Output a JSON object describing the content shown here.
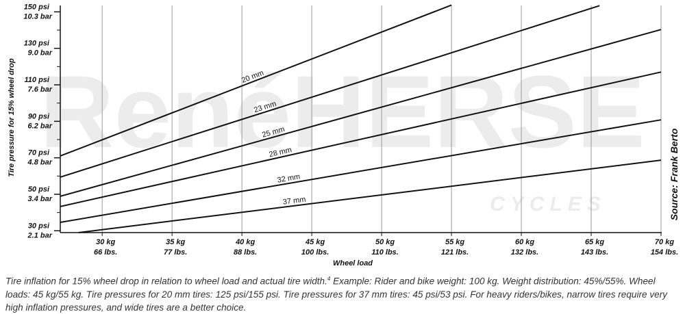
{
  "chart_data": {
    "type": "line",
    "y_label": "Tire pressure for 15% wheel drop",
    "x_label": "Wheel load",
    "source": "Source: Frank Berto",
    "watermark": "RenéHERSE",
    "watermark_sub": "CYCLES",
    "xlim": [
      27,
      70
    ],
    "ylim": [
      29,
      153.5
    ],
    "xticks": [
      {
        "value": 30,
        "label": "30 kg"
      },
      {
        "value": 35,
        "label": "35 kg"
      },
      {
        "value": 40,
        "label": "40 kg"
      },
      {
        "value": 45,
        "label": "45 kg"
      },
      {
        "value": 50,
        "label": "50 kg"
      },
      {
        "value": 55,
        "label": "55 kg"
      },
      {
        "value": 60,
        "label": "60 kg"
      },
      {
        "value": 65,
        "label": "65 kg"
      },
      {
        "value": 70,
        "label": "70 kg"
      }
    ],
    "xtick_lbs_labels": [
      "66 lbs.",
      "77 lbs.",
      "88 lbs.",
      "100 lbs.",
      "110 lbs.",
      "121 lbs.",
      "132 lbs.",
      "143 lbs.",
      "154 lbs."
    ],
    "yticks": [
      {
        "value": 150,
        "label": "150 psi"
      },
      {
        "value": 130,
        "label": "130 psi"
      },
      {
        "value": 110,
        "label": "110 psi"
      },
      {
        "value": 90,
        "label": "90 psi"
      },
      {
        "value": 70,
        "label": "70 psi"
      },
      {
        "value": 50,
        "label": "50 psi"
      },
      {
        "value": 30,
        "label": "30 psi"
      }
    ],
    "ytick_bar_labels": [
      "10.3 bar",
      "9.0 bar",
      "7.6 bar",
      "6.2 bar",
      "4.8 bar",
      "3.4 bar",
      "2.1 bar"
    ],
    "yminor_ticks": [
      140,
      120,
      100,
      80,
      60,
      40
    ],
    "grid": "x",
    "series": [
      {
        "name": "20 mm",
        "color": "#111111",
        "x": [
          27,
          55
        ],
        "values": [
          71,
          153.7
        ]
      },
      {
        "name": "23 mm",
        "color": "#111111",
        "x": [
          27,
          65.6
        ],
        "values": [
          59.4,
          153.4
        ]
      },
      {
        "name": "25 mm",
        "color": "#111111",
        "x": [
          27,
          70
        ],
        "values": [
          48.9,
          140.3
        ]
      },
      {
        "name": "28 mm",
        "color": "#111111",
        "x": [
          27,
          70
        ],
        "values": [
          43.3,
          117
        ]
      },
      {
        "name": "32 mm",
        "color": "#111111",
        "x": [
          27,
          70
        ],
        "values": [
          34.6,
          90.8
        ]
      },
      {
        "name": "37 mm",
        "color": "#111111",
        "x": [
          28.3,
          70
        ],
        "values": [
          29,
          68.7
        ]
      }
    ],
    "caption_main": "Tire inflation for 15% wheel drop in relation to wheel load and actual tire width.",
    "caption_ref": "4",
    "caption_rest": " Example: Rider and bike weight: 100 kg. Weight distribution: 45%/55%. Wheel loads: 45 kg/55 kg. Tire pressures for 20 mm tires: 125 psi/155 psi. Tire pressures for 37 mm tires: 45 psi/53 psi. For heavy riders/bikes, narrow tires require very high inflation pressures, and wide tires are a better choice."
  }
}
